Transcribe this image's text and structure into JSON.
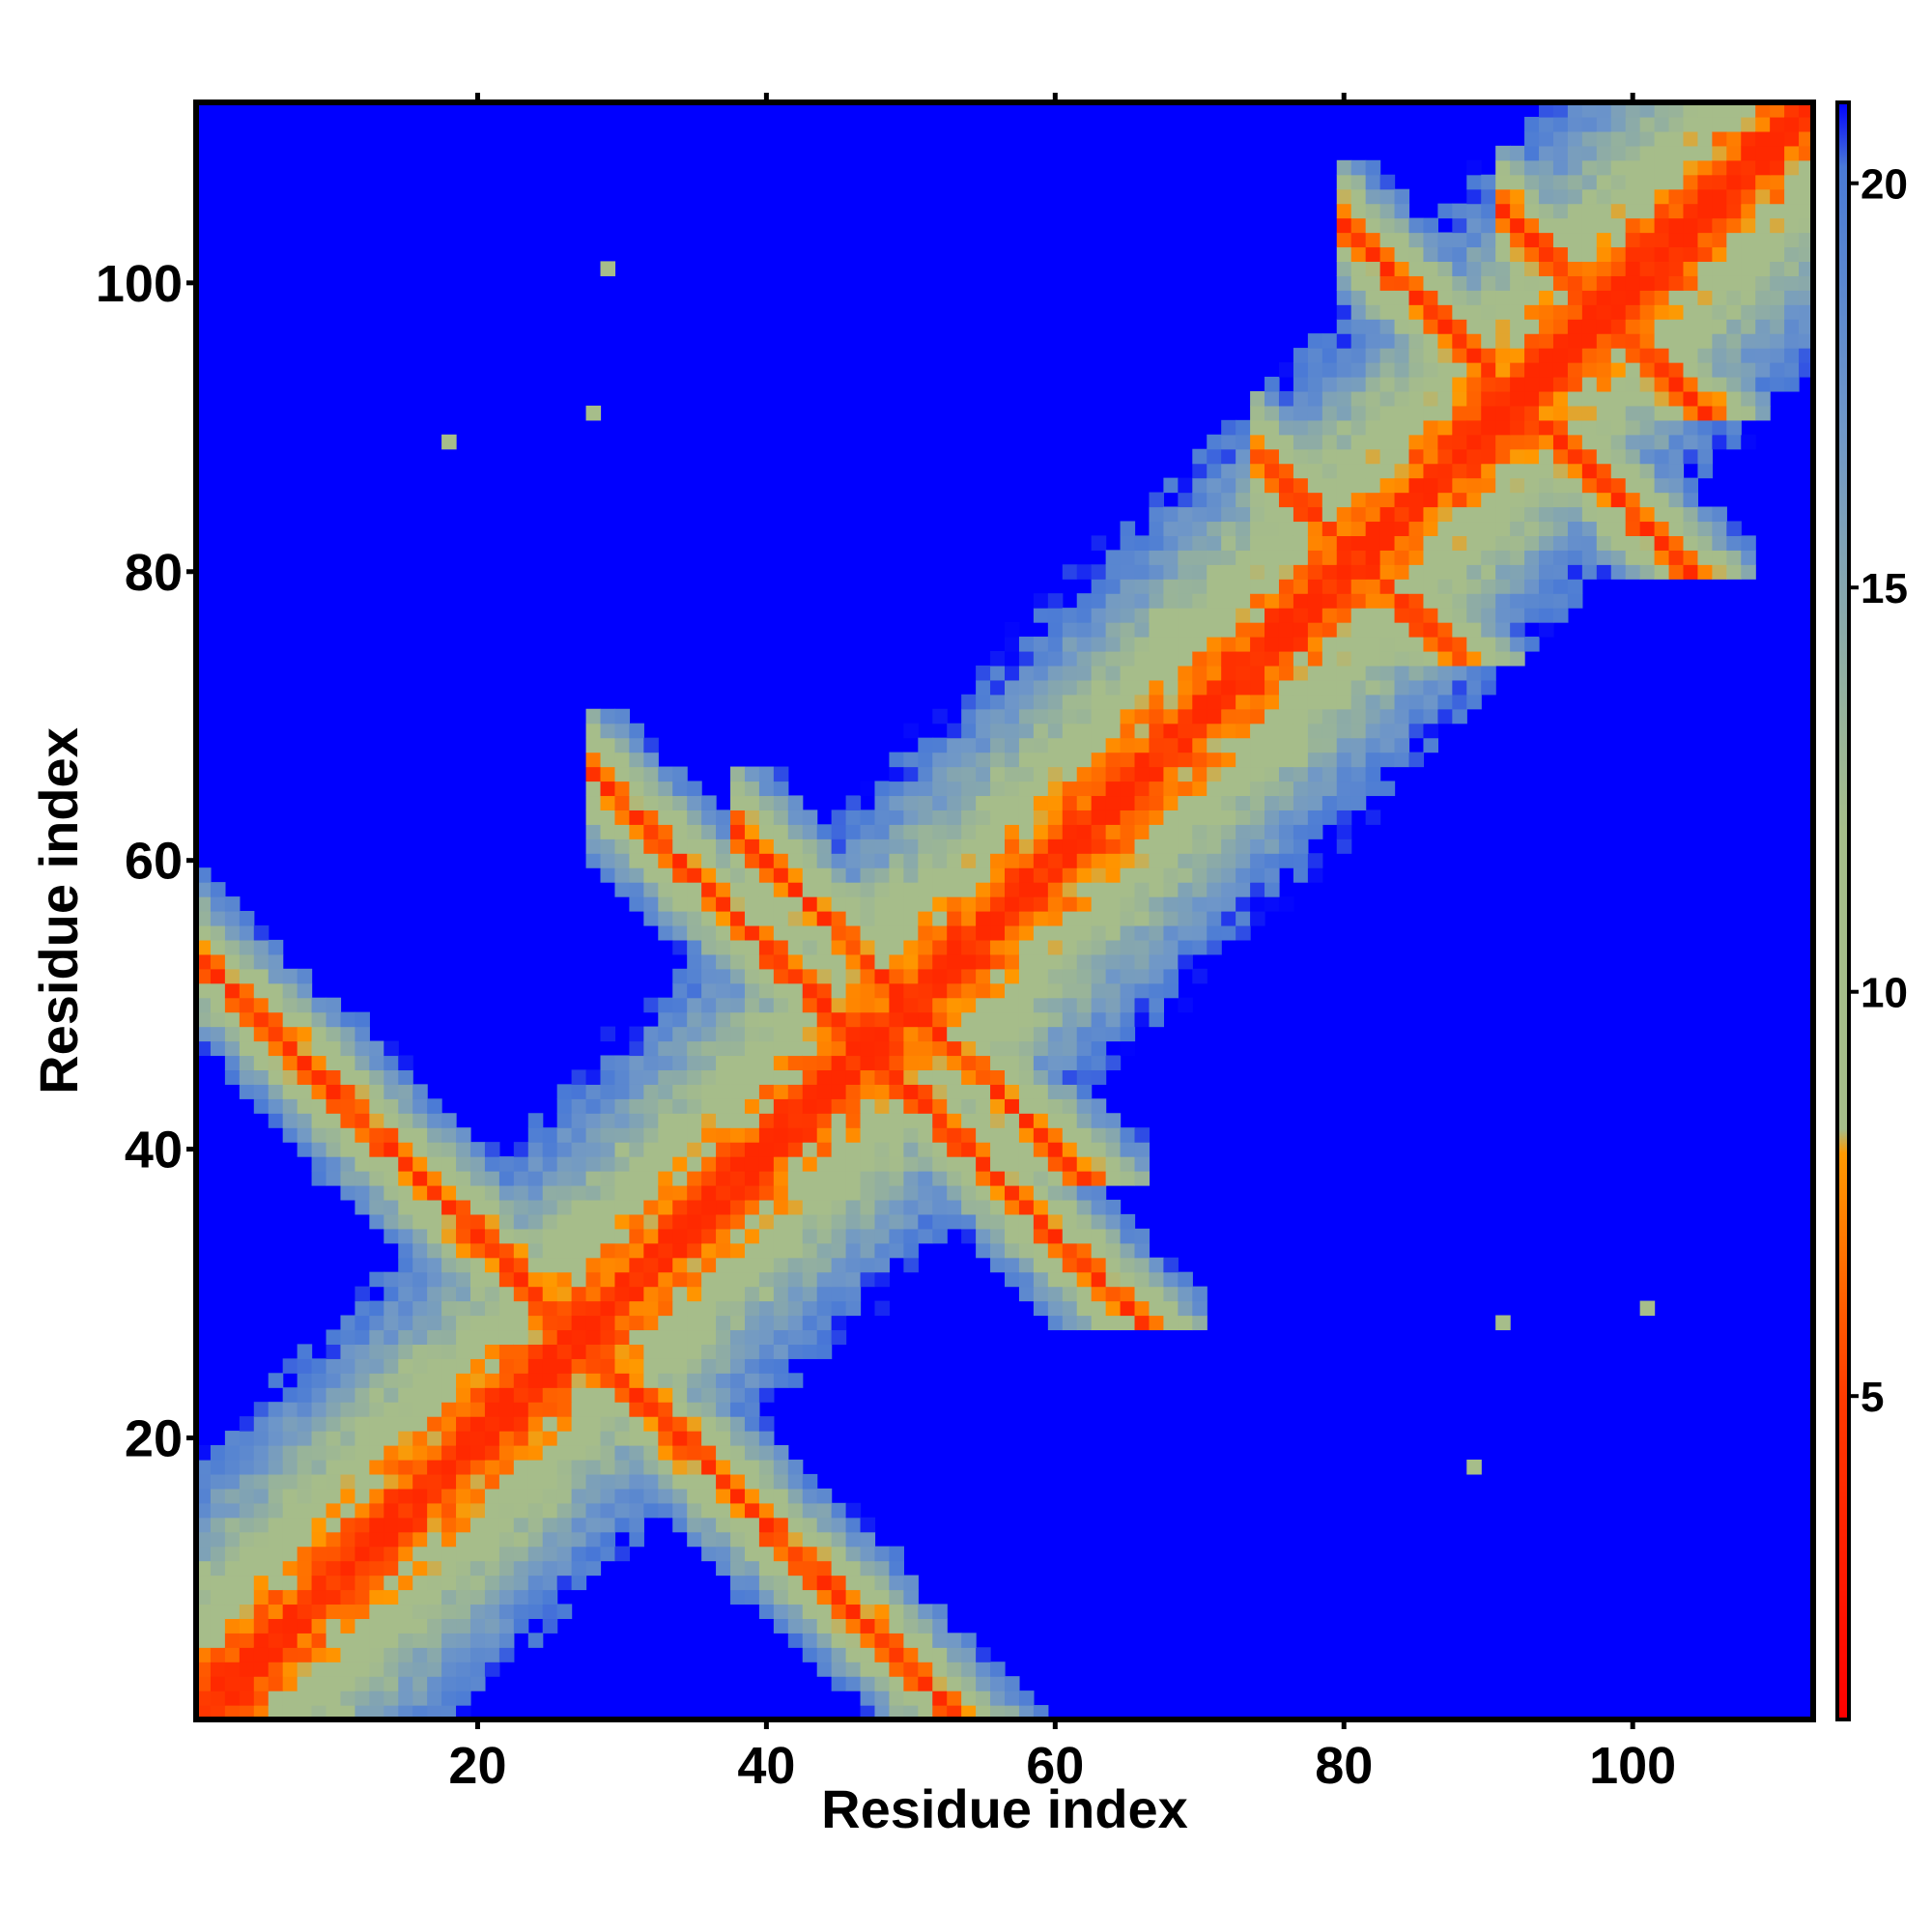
{
  "chart_data": {
    "type": "heatmap",
    "title": "",
    "xlabel": "Residue index",
    "ylabel": "Residue index",
    "n_residues": 112,
    "x_range": [
      1,
      112
    ],
    "y_range": [
      1,
      112
    ],
    "x_ticks": [
      20,
      40,
      60,
      80,
      100
    ],
    "y_ticks": [
      20,
      40,
      60,
      80,
      100
    ],
    "x_tick_labels": [
      "20",
      "40",
      "60",
      "80",
      "100"
    ],
    "y_tick_labels": [
      "20",
      "40",
      "60",
      "80",
      "100"
    ],
    "colorbar": {
      "range": [
        1,
        21
      ],
      "ticks": [
        5,
        10,
        15,
        20
      ],
      "tick_labels": [
        "5",
        "10",
        "15",
        "20"
      ],
      "colors": [
        {
          "value": 1,
          "color": "#ff0000"
        },
        {
          "value": 5,
          "color": "#ff3b00"
        },
        {
          "value": 8,
          "color": "#ff9900"
        },
        {
          "value": 8.3,
          "color": "#a6bd8a"
        },
        {
          "value": 12,
          "color": "#a6bd8a"
        },
        {
          "value": 17,
          "color": "#6f97c8"
        },
        {
          "value": 20.2,
          "color": "#4a7ad6"
        },
        {
          "value": 21,
          "color": "#0000ff"
        }
      ]
    },
    "cutoff_color": "#0000ff",
    "structure": {
      "description_values": "symmetric residue-residue distance map (Å); diagonal ~3.8, blue >= 21",
      "diagonal_band": {
        "from": 1,
        "to": 112
      },
      "antidiagonal_contacts": [
        {
          "center_i": 14,
          "center_j": 40,
          "note": "hairpin region residues 1-54"
        },
        {
          "center_i": 21,
          "center_j": 33
        },
        {
          "center_i": 45,
          "center_j": 60
        },
        {
          "center_i": 66,
          "center_j": 84
        },
        {
          "center_i": 86,
          "center_j": 108
        },
        {
          "center_i": 90,
          "center_j": 102
        }
      ],
      "isolated_points": [
        {
          "x": 29,
          "y": 101
        },
        {
          "x": 28,
          "y": 91
        },
        {
          "x": 18,
          "y": 89
        },
        {
          "x": 91,
          "y": 28
        },
        {
          "x": 101,
          "y": 29
        },
        {
          "x": 89,
          "y": 18
        }
      ]
    }
  }
}
